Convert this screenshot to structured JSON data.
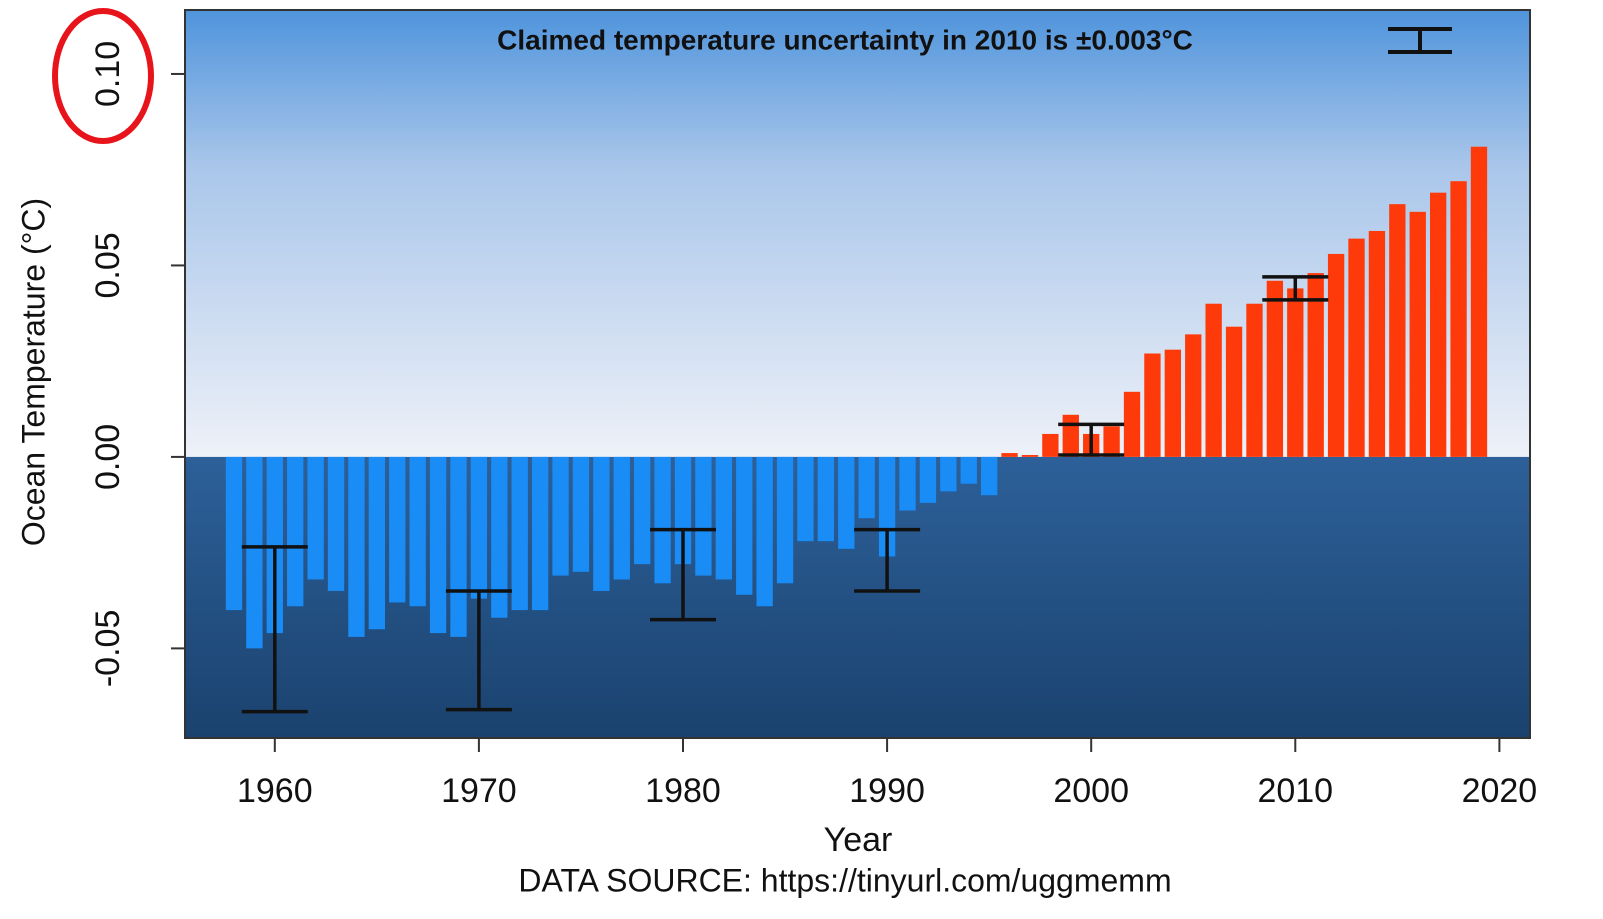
{
  "chart_data": {
    "type": "bar",
    "title": "Claimed temperature uncertainty in 2010 is ±0.003°C",
    "x_label": "Year",
    "y_label": "Ocean Temperature (°C)",
    "source": "DATA SOURCE: https://tinyurl.com/uggmemm",
    "x": [
      1958,
      1959,
      1960,
      1961,
      1962,
      1963,
      1964,
      1965,
      1966,
      1967,
      1968,
      1969,
      1970,
      1971,
      1972,
      1973,
      1974,
      1975,
      1976,
      1977,
      1978,
      1979,
      1980,
      1981,
      1982,
      1983,
      1984,
      1985,
      1986,
      1987,
      1988,
      1989,
      1990,
      1991,
      1992,
      1993,
      1994,
      1995,
      1996,
      1997,
      1998,
      1999,
      2000,
      2001,
      2002,
      2003,
      2004,
      2005,
      2006,
      2007,
      2008,
      2009,
      2010,
      2011,
      2012,
      2013,
      2014,
      2015,
      2016,
      2017,
      2018,
      2019
    ],
    "values": [
      -0.04,
      -0.05,
      -0.046,
      -0.039,
      -0.032,
      -0.035,
      -0.047,
      -0.045,
      -0.038,
      -0.039,
      -0.046,
      -0.047,
      -0.037,
      -0.042,
      -0.04,
      -0.04,
      -0.031,
      -0.03,
      -0.035,
      -0.032,
      -0.028,
      -0.033,
      -0.028,
      -0.031,
      -0.032,
      -0.036,
      -0.039,
      -0.033,
      -0.022,
      -0.022,
      -0.024,
      -0.016,
      -0.026,
      -0.014,
      -0.012,
      -0.009,
      -0.007,
      -0.01,
      0.001,
      0.0005,
      0.006,
      0.011,
      0.006,
      0.008,
      0.017,
      0.027,
      0.028,
      0.032,
      0.04,
      0.034,
      0.04,
      0.046,
      0.044,
      0.048,
      0.053,
      0.057,
      0.059,
      0.066,
      0.064,
      0.069,
      0.072,
      0.081
    ],
    "negative_color": "#1a8cf5",
    "positive_color": "#ff3a0a",
    "error_bars": [
      {
        "x": 1960,
        "low": -0.0665,
        "high": -0.0235
      },
      {
        "x": 1970,
        "low": -0.066,
        "high": -0.035
      },
      {
        "x": 1980,
        "low": -0.0425,
        "high": -0.019
      },
      {
        "x": 1990,
        "low": -0.035,
        "high": -0.019
      },
      {
        "x": 2000,
        "low": 0.0005,
        "high": 0.0085
      },
      {
        "x": 2010,
        "low": 0.041,
        "high": 0.047
      }
    ],
    "xlim": [
      1955.6,
      2021.5
    ],
    "ylim": [
      -0.0734,
      0.1167
    ],
    "xticks": [
      1960,
      1970,
      1980,
      1990,
      2000,
      2010,
      2020
    ],
    "yticks": [
      -0.05,
      {
        "value": 0,
        "label": "0.00"
      },
      0.05,
      {
        "value": 0.1,
        "label": "0.10"
      }
    ]
  }
}
